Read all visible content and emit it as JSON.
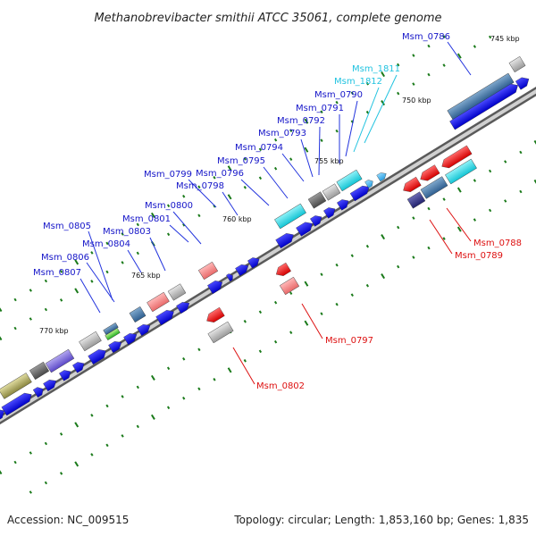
{
  "title": "Methanobrevibacter smithii ATCC 35061, complete genome",
  "footer": {
    "accession": "Accession: NC_009515",
    "summary": "Topology: circular; Length: 1,853,160 bp; Genes: 1,835"
  },
  "colors": {
    "forward_cds": "#1010e8",
    "reverse_cds": "#ee1010",
    "forward_label": "#1515c8",
    "reverse_label": "#dd1010",
    "rna_label": "#22c3e0",
    "backbone": "#8c8c8c",
    "tick": "#1a7a1a"
  },
  "kbp_labels": [
    "745 kbp",
    "750 kbp",
    "755 kbp",
    "760 kbp",
    "765 kbp",
    "770 kbp"
  ],
  "gene_labels": [
    {
      "text": "Msm_0786",
      "strand": "forward"
    },
    {
      "text": "Msm_1811",
      "strand": "rna"
    },
    {
      "text": "Msm_1812",
      "strand": "rna"
    },
    {
      "text": "Msm_0790",
      "strand": "forward"
    },
    {
      "text": "Msm_0791",
      "strand": "forward"
    },
    {
      "text": "Msm_0792",
      "strand": "forward"
    },
    {
      "text": "Msm_0793",
      "strand": "forward"
    },
    {
      "text": "Msm_0794",
      "strand": "forward"
    },
    {
      "text": "Msm_0795",
      "strand": "forward"
    },
    {
      "text": "Msm_0796",
      "strand": "forward"
    },
    {
      "text": "Msm_0799",
      "strand": "forward"
    },
    {
      "text": "Msm_0798",
      "strand": "forward"
    },
    {
      "text": "Msm_0800",
      "strand": "forward"
    },
    {
      "text": "Msm_0801",
      "strand": "forward"
    },
    {
      "text": "Msm_0803",
      "strand": "forward"
    },
    {
      "text": "Msm_0805",
      "strand": "forward"
    },
    {
      "text": "Msm_0804",
      "strand": "forward"
    },
    {
      "text": "Msm_0806",
      "strand": "forward"
    },
    {
      "text": "Msm_0807",
      "strand": "forward"
    },
    {
      "text": "Msm_0788",
      "strand": "reverse"
    },
    {
      "text": "Msm_0789",
      "strand": "reverse"
    },
    {
      "text": "Msm_0797",
      "strand": "reverse"
    },
    {
      "text": "Msm_0802",
      "strand": "reverse"
    }
  ]
}
